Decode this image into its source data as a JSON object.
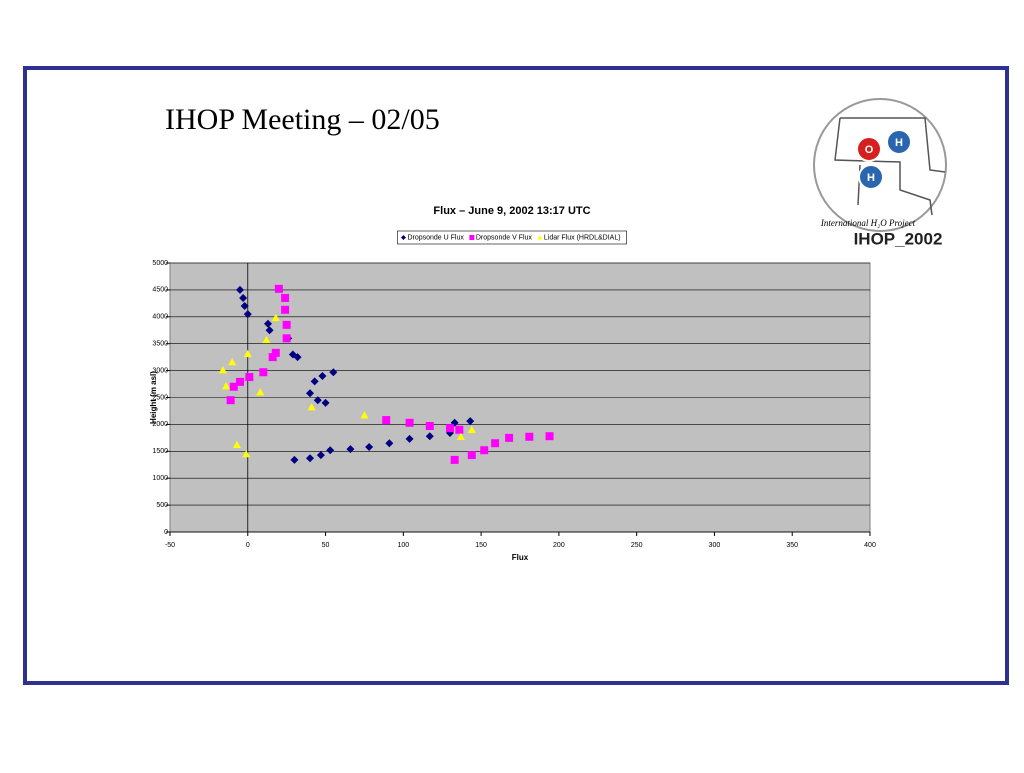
{
  "slide_title": "IHOP  Meeting – 02/05",
  "logo": {
    "atoms": [
      "O",
      "H",
      "H"
    ],
    "caption": "International H₂O Project",
    "name": "IHOP_2002"
  },
  "chart_data": {
    "type": "scatter",
    "title": "Flux – June 9, 2002 13:17 UTC",
    "x_label": "Flux",
    "y_label": "Height (m asl)",
    "xlim": [
      -50,
      400
    ],
    "xticks": [
      -50,
      0,
      50,
      100,
      150,
      200,
      250,
      300,
      350,
      400
    ],
    "ylim": [
      0,
      5000
    ],
    "yticks": [
      0,
      500,
      1000,
      1500,
      2000,
      2500,
      3000,
      3500,
      4000,
      4500,
      5000
    ],
    "grid": true,
    "legend": "top",
    "background": "#c0c0c0",
    "series": [
      {
        "name": "Dropsonde U Flux",
        "color": "#000080",
        "marker": "diamond",
        "x": [
          -5,
          -3,
          -2,
          0,
          13,
          14,
          26,
          29,
          32,
          40,
          45,
          50,
          43,
          48,
          55,
          30,
          40,
          47,
          53,
          66,
          78,
          91,
          104,
          117,
          130,
          133,
          143
        ],
        "values": [
          4500,
          4350,
          4200,
          4050,
          3870,
          3750,
          3600,
          3300,
          3250,
          2580,
          2450,
          2400,
          2800,
          2900,
          2970,
          1340,
          1370,
          1430,
          1520,
          1540,
          1580,
          1650,
          1730,
          1780,
          1840,
          2030,
          2060
        ]
      },
      {
        "name": "Dropsonde V Flux",
        "color": "#ff00ff",
        "marker": "square",
        "x": [
          20,
          24,
          24,
          25,
          25,
          18,
          16,
          10,
          1,
          -5,
          -9,
          -11,
          89,
          104,
          117,
          130,
          136,
          133,
          144,
          152,
          159,
          168,
          181,
          194
        ],
        "values": [
          4520,
          4350,
          4130,
          3850,
          3600,
          3330,
          3250,
          2970,
          2880,
          2790,
          2700,
          2450,
          2080,
          2030,
          1970,
          1930,
          1900,
          1340,
          1430,
          1520,
          1650,
          1750,
          1770,
          1780
        ]
      },
      {
        "name": "Lidar Flux (HRDL&DIAL)",
        "color": "#ffff00",
        "marker": "triangle",
        "x": [
          -16,
          -10,
          0,
          -14,
          8,
          12,
          18,
          41,
          75,
          137,
          -7,
          -1,
          144
        ],
        "values": [
          3010,
          3160,
          3310,
          2710,
          2600,
          3570,
          3980,
          2320,
          2170,
          1770,
          1620,
          1450,
          1900
        ]
      }
    ]
  }
}
